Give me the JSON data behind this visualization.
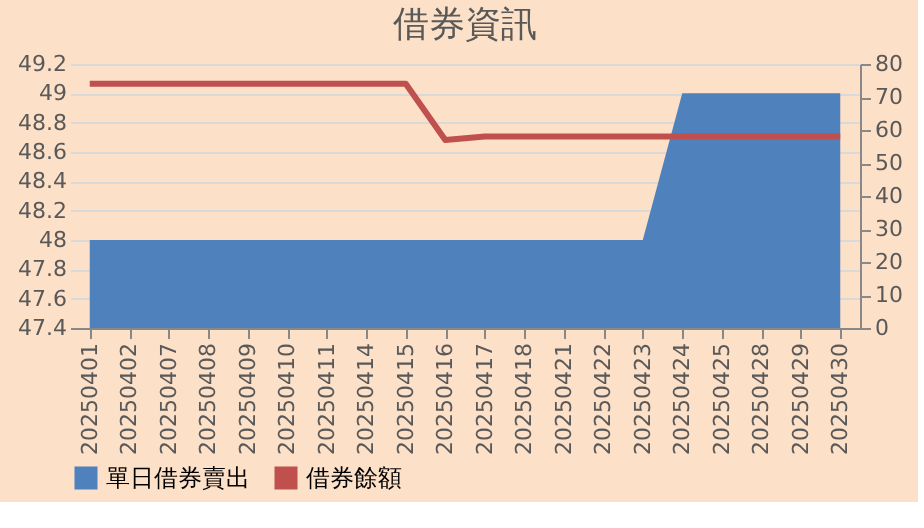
{
  "chart_data": {
    "type": "area",
    "title": "借券資訊",
    "categories": [
      "20250401",
      "20250402",
      "20250407",
      "20250408",
      "20250409",
      "20250410",
      "20250411",
      "20250414",
      "20250415",
      "20250416",
      "20250417",
      "20250418",
      "20250421",
      "20250422",
      "20250423",
      "20250424",
      "20250425",
      "20250428",
      "20250429",
      "20250430"
    ],
    "series": [
      {
        "name": "單日借券賣出",
        "color": "#4f81bd",
        "values": [
          48,
          48,
          48,
          48,
          48,
          48,
          48,
          48,
          48,
          48,
          48,
          48,
          48,
          48,
          48,
          49,
          49,
          49,
          49,
          49
        ]
      },
      {
        "name": "借券餘額",
        "type": "line",
        "axis": "y2",
        "color": "#c0504d",
        "values": [
          74,
          74,
          74,
          74,
          74,
          74,
          74,
          74,
          74,
          57,
          58,
          58,
          58,
          58,
          58,
          58,
          58,
          58,
          58,
          58
        ]
      }
    ],
    "ylim": [
      47.4,
      49.2
    ],
    "yticks": [
      47.4,
      47.6,
      47.8,
      48,
      48.2,
      48.4,
      48.6,
      48.8,
      49,
      49.2
    ],
    "y2lim": [
      0,
      80
    ],
    "y2ticks": [
      0,
      10,
      20,
      30,
      40,
      50,
      60,
      70,
      80
    ],
    "grid": "y",
    "legend": "bottom"
  }
}
